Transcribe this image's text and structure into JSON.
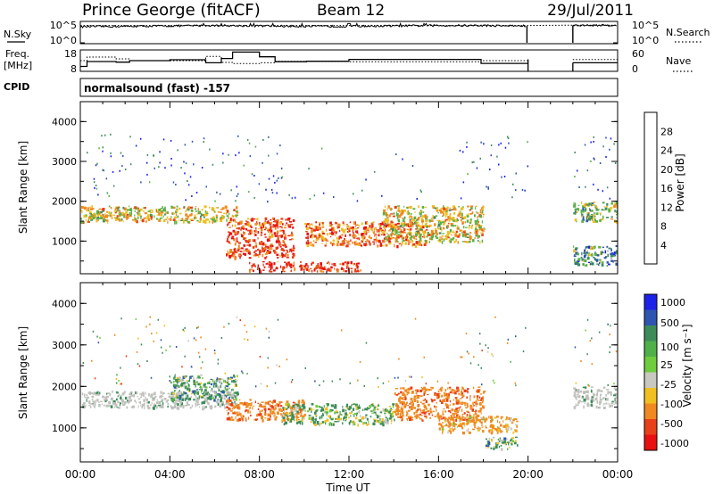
{
  "header": {
    "title": "Prince George (fitACF)",
    "beam": "Beam 12",
    "date": "29/Jul/2011"
  },
  "noise_panel": {
    "left_label": "N.Sky",
    "left_ticks": [
      "10^5",
      "10^0"
    ],
    "right_ticks": [
      "10^5",
      "10^0"
    ],
    "right_label": "N.Search"
  },
  "freq_panel": {
    "left_label_1": "Freq.",
    "left_label_2": "[MHz]",
    "left_ticks": [
      "18",
      "8"
    ],
    "right_ticks": [
      "60",
      "0"
    ],
    "right_label": "Nave"
  },
  "cpid": {
    "label": "CPID",
    "text": "normalsound (fast) -157"
  },
  "colors": {
    "power": [
      "#1d22e8",
      "#2e55b0",
      "#3c8c5a",
      "#5ab045",
      "#f0c020",
      "#f08a20",
      "#e84018",
      "#e81010"
    ],
    "velocity": [
      "#1d22e8",
      "#2e55b0",
      "#3c8c5a",
      "#4fb04a",
      "#6fcc3c",
      "#c8c8c0",
      "#f0c020",
      "#f08a20",
      "#e84018",
      "#e81010"
    ],
    "ground_scatter": "#c0c0bc"
  },
  "chart_data": [
    {
      "type": "heatmap",
      "name_printed": "",
      "quantity": "Power",
      "colorbar_label": "Power [dB]",
      "colorbar_ticks": [
        "28",
        "24",
        "20",
        "16",
        "12",
        "8",
        "4"
      ],
      "ylabel": "Slant Range [km]",
      "y_ticks": [
        "4000",
        "3000",
        "2000",
        "1000"
      ],
      "ylim": [
        180,
        4500
      ],
      "xlabel": "Time UT",
      "x_ticks": [
        "00:00",
        "04:00",
        "08:00",
        "12:00",
        "16:00",
        "20:00",
        "00:00"
      ],
      "xlim_hours": [
        0,
        24
      ],
      "data_gap_hours": [
        20.0,
        22.0
      ],
      "echo_bands": [
        {
          "t": [
            0.0,
            1.0
          ],
          "range_km": [
            1500,
            1800
          ],
          "power_db": 14
        },
        {
          "t": [
            0.0,
            7.0
          ],
          "range_km": [
            1500,
            1900
          ],
          "power_db": 18
        },
        {
          "t": [
            6.5,
            9.5
          ],
          "range_km": [
            600,
            1600
          ],
          "power_db": 26
        },
        {
          "t": [
            7.5,
            12.5
          ],
          "range_km": [
            250,
            500
          ],
          "power_db": 28
        },
        {
          "t": [
            10.0,
            15.5
          ],
          "range_km": [
            900,
            1500
          ],
          "power_db": 24
        },
        {
          "t": [
            13.5,
            18.0
          ],
          "range_km": [
            1000,
            1900
          ],
          "power_db": 18
        },
        {
          "t": [
            22.0,
            24.0
          ],
          "range_km": [
            1500,
            2000
          ],
          "power_db": 14
        },
        {
          "t": [
            22.0,
            24.0
          ],
          "range_km": [
            400,
            900
          ],
          "power_db": 10
        }
      ]
    },
    {
      "type": "heatmap",
      "quantity": "Velocity",
      "colorbar_label": "Velocity [m s⁻¹]",
      "colorbar_ticks": [
        "1000",
        "500",
        "100",
        "25",
        "-25",
        "-100",
        "-500",
        "-1000"
      ],
      "ylabel": "Slant Range [km]",
      "y_ticks": [
        "4000",
        "3000",
        "2000",
        "1000"
      ],
      "ylim": [
        180,
        4500
      ],
      "xlabel": "Time UT",
      "x_ticks": [
        "00:00",
        "04:00",
        "08:00",
        "12:00",
        "16:00",
        "20:00",
        "00:00"
      ],
      "xlim_hours": [
        0,
        24
      ],
      "data_gap_hours": [
        20.0,
        22.0
      ],
      "echo_bands": [
        {
          "t": [
            0.0,
            7.0
          ],
          "range_km": [
            1500,
            1900
          ],
          "velocity": 0,
          "ground_scatter": true
        },
        {
          "t": [
            4.0,
            7.0
          ],
          "range_km": [
            1700,
            2300
          ],
          "velocity": 150
        },
        {
          "t": [
            6.5,
            10.0
          ],
          "range_km": [
            1200,
            1700
          ],
          "velocity": -300
        },
        {
          "t": [
            9.0,
            14.0
          ],
          "range_km": [
            1100,
            1600
          ],
          "velocity": 100
        },
        {
          "t": [
            14.0,
            18.0
          ],
          "range_km": [
            1200,
            2000
          ],
          "velocity": -300
        },
        {
          "t": [
            16.0,
            19.5
          ],
          "range_km": [
            900,
            1300
          ],
          "velocity": -150
        },
        {
          "t": [
            18.0,
            19.5
          ],
          "range_km": [
            500,
            800
          ],
          "velocity": 120
        },
        {
          "t": [
            22.0,
            24.0
          ],
          "range_km": [
            1500,
            2000
          ],
          "velocity": 0,
          "ground_scatter": true
        }
      ]
    }
  ],
  "noise_series": {
    "x_hours": [
      0,
      2,
      4,
      6,
      8,
      10,
      12,
      14,
      16,
      18,
      19.9,
      22,
      24
    ],
    "n_sky_log10": [
      4.1,
      4.2,
      4.3,
      4.4,
      4.3,
      4.2,
      4.2,
      4.3,
      4.4,
      4.4,
      4.3,
      4.4,
      4.5
    ],
    "n_search_log10": [
      4.4,
      4.4,
      4.4,
      4.4,
      4.4,
      4.4,
      4.4,
      4.4,
      4.4,
      4.4,
      4.4,
      4.5,
      4.5
    ]
  },
  "freq_series": {
    "t_edges": [
      0.0,
      0.3,
      1.6,
      2.2,
      4.0,
      5.6,
      6.3,
      6.8,
      8.0,
      8.7,
      10.1,
      12.0,
      14.4,
      16.1,
      17.9,
      20.0,
      22.0,
      24.0
    ],
    "freq_mhz": [
      10.3,
      12.6,
      12.3,
      13.0,
      13.4,
      12.0,
      14.0,
      17.0,
      14.8,
      12.5,
      12.7,
      13.6,
      13.6,
      13.6,
      11.7,
      null,
      12.0
    ],
    "nave_values": [
      30,
      40,
      35,
      30,
      30,
      42,
      25,
      22,
      24,
      28,
      28,
      27,
      27,
      27,
      30,
      null,
      33
    ]
  }
}
